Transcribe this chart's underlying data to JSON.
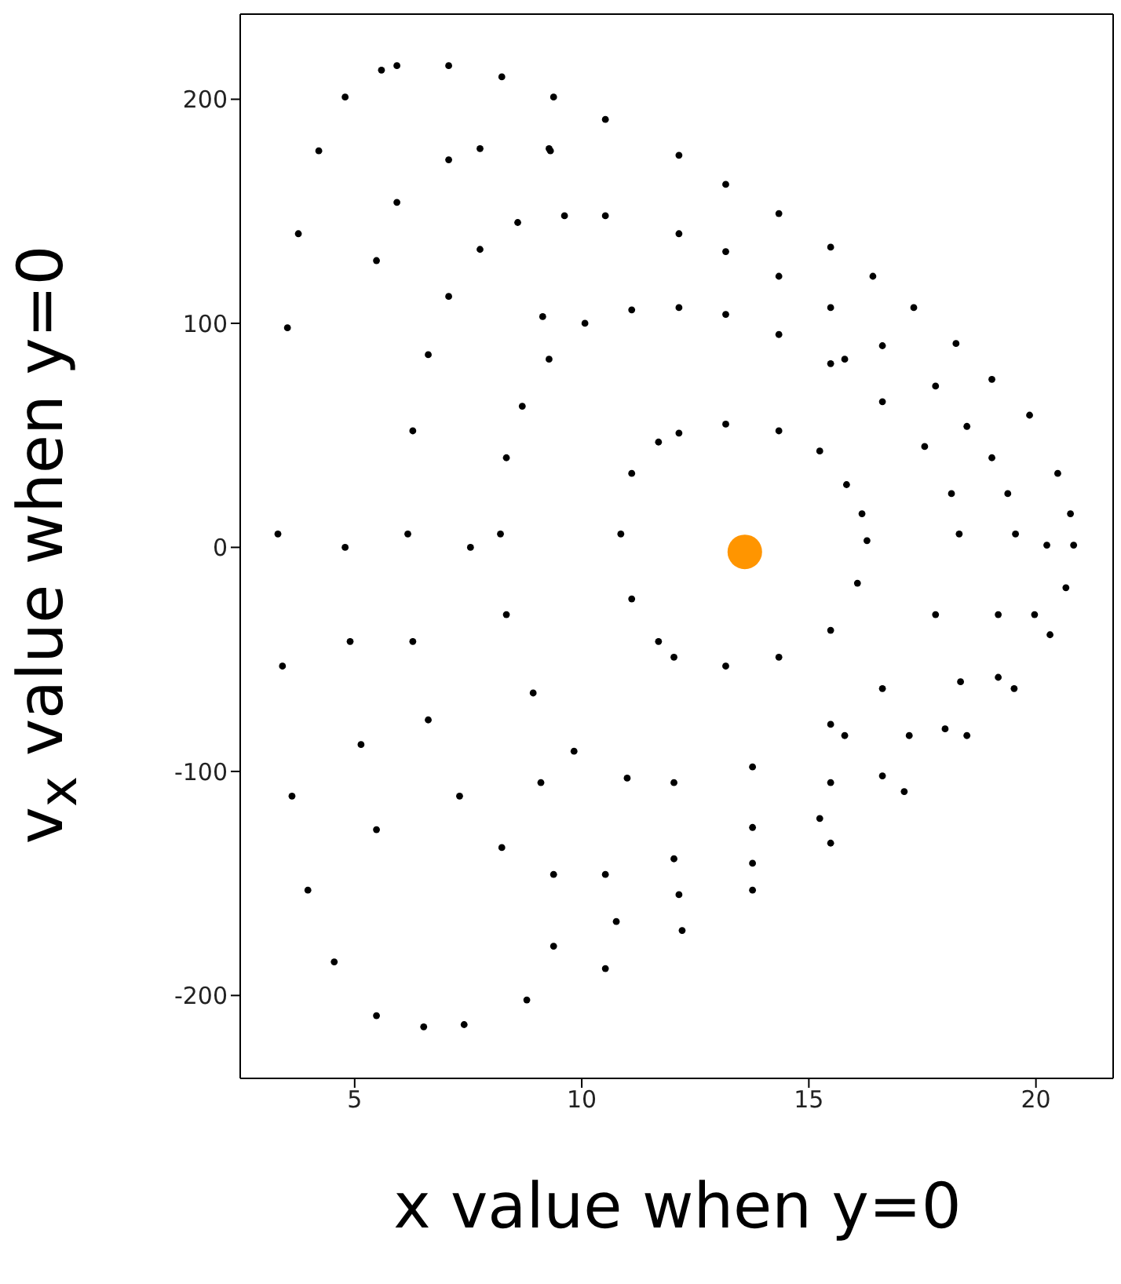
{
  "chart_data": {
    "type": "scatter",
    "xlabel": "x value when y=0",
    "ylabel": "v$_{x}$ value when y=0",
    "xlim": [
      2.48,
      21.7
    ],
    "ylim": [
      -237,
      238
    ],
    "xticks": [
      5,
      10,
      15,
      20
    ],
    "yticks": [
      -200,
      -100,
      0,
      100,
      200
    ],
    "marker": "circle",
    "series": [
      {
        "color": "#000000",
        "x": [
          3.31,
          3.52,
          3.76,
          4.21,
          4.79,
          5.59,
          5.93,
          7.07,
          8.24,
          9.38,
          10.52,
          12.14,
          13.17,
          14.34,
          15.48,
          16.41,
          17.31,
          18.24,
          19.03,
          19.86,
          20.48,
          20.76,
          20.83,
          20.66,
          20.31,
          19.52,
          18.48,
          17.1,
          15.48,
          13.76,
          12.21,
          10.52,
          8.79,
          7.41,
          6.52,
          5.48,
          4.55,
          3.97,
          3.62,
          3.41
        ],
        "values": [
          6,
          98,
          140,
          177,
          201,
          213,
          215,
          215,
          210,
          201,
          191,
          175,
          162,
          149,
          134,
          121,
          107,
          91,
          75,
          59,
          33,
          15,
          1,
          -18,
          -39,
          -63,
          -84,
          -109,
          -132,
          -153,
          -171,
          -188,
          -202,
          -213,
          -214,
          -209,
          -185,
          -153,
          -111,
          -53
        ]
      },
      {
        "color": "#000000",
        "x": [
          6.17,
          6.28,
          6.62,
          7.07,
          7.76,
          8.59,
          9.62,
          10.52,
          12.14,
          13.17,
          14.34,
          15.48,
          16.62,
          17.79,
          18.48,
          19.03,
          19.38,
          19.55,
          19.17,
          18.34,
          17.21,
          15.48,
          13.76,
          12.03,
          10.52,
          9.38,
          8.24,
          7.31,
          6.62,
          6.28
        ],
        "values": [
          6,
          52,
          86,
          112,
          133,
          145,
          148,
          148,
          140,
          132,
          121,
          107,
          90,
          72,
          54,
          40,
          24,
          6,
          -30,
          -60,
          -84,
          -105,
          -125,
          -139,
          -146,
          -146,
          -134,
          -111,
          -77,
          -42
        ]
      },
      {
        "color": "#000000",
        "x": [
          8.21,
          8.34,
          8.69,
          9.28,
          10.07,
          11.1,
          12.14,
          13.17,
          14.34,
          15.48,
          16.62,
          17.55,
          18.14,
          18.31,
          17.79,
          16.62,
          15.48,
          13.76,
          12.03,
          11,
          9.83,
          8.93,
          8.34
        ],
        "values": [
          6,
          40,
          63,
          84,
          100,
          106,
          107,
          104,
          95,
          82,
          65,
          45,
          24,
          6,
          -30,
          -63,
          -79,
          -98,
          -105,
          -103,
          -91,
          -65,
          -30
        ]
      },
      {
        "color": "#000000",
        "x": [
          10.86,
          11.1,
          11.69,
          12.14,
          13.17,
          14.34,
          15.24,
          15.83,
          16.17,
          16.28,
          16.07,
          15.48,
          14.34,
          13.17,
          12.03,
          11.69,
          11.1
        ],
        "values": [
          6,
          33,
          47,
          51,
          55,
          52,
          43,
          28,
          15,
          3,
          -16,
          -37,
          -49,
          -53,
          -49,
          -42,
          -23
        ]
      },
      {
        "color": "#000000",
        "x": [
          5.48,
          5.93,
          7.07,
          7.76,
          9.28,
          9.31,
          4.79,
          4.9,
          5.14,
          5.48,
          9.38,
          10.76,
          12.14,
          13.76,
          15.24,
          16.62,
          18,
          19.17,
          19.97,
          20.24
        ],
        "values": [
          128,
          154,
          173,
          178,
          178,
          177,
          0,
          -42,
          -88,
          -126,
          -178,
          -167,
          -155,
          -141,
          -121,
          -102,
          -81,
          -58,
          -30,
          1
        ]
      },
      {
        "color": "#000000",
        "x": [
          9.14,
          7.55,
          9.1,
          15.79,
          15.79
        ],
        "values": [
          103,
          0,
          -105,
          84,
          -84
        ]
      },
      {
        "type": "bubble",
        "color": "#ff9500",
        "x": [
          13.59
        ],
        "values": [
          -2
        ],
        "sizes": [
          1
        ]
      }
    ]
  }
}
